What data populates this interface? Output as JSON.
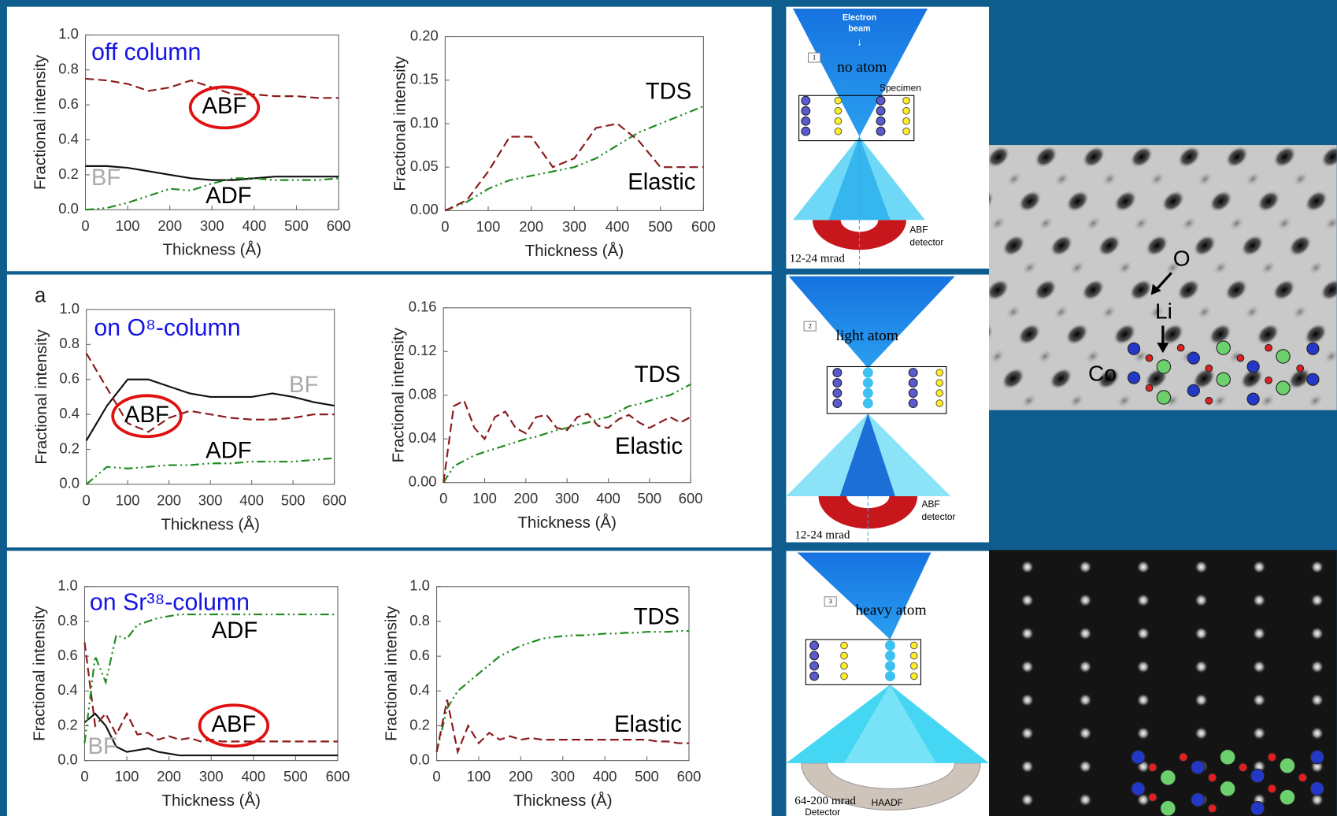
{
  "chart_data": [
    {
      "type": "line",
      "annotation": "off column",
      "xlabel": "Thickness (Å)",
      "ylabel": "Fractional intensity",
      "x": [
        0,
        50,
        100,
        150,
        200,
        250,
        300,
        350,
        400,
        450,
        500,
        550,
        600
      ],
      "xlim": [
        0,
        600
      ],
      "xticks": [
        0,
        100,
        200,
        300,
        400,
        500,
        600
      ],
      "ylim": [
        0,
        1
      ],
      "yticks": [
        {
          "value": 0,
          "label": "0.0"
        },
        0.2,
        0.4,
        0.6,
        0.8,
        {
          "value": 1,
          "label": "1.0"
        }
      ],
      "series": [
        {
          "name": "BF",
          "color": "#111111",
          "label_color": "#aaaaaa",
          "style": "solid",
          "values": [
            0.25,
            0.25,
            0.24,
            0.22,
            0.2,
            0.18,
            0.17,
            0.17,
            0.18,
            0.19,
            0.19,
            0.19,
            0.19
          ]
        },
        {
          "name": "ABF",
          "color": "#8b1a1a",
          "label_color": "#000000",
          "style": "dashed",
          "values": [
            0.75,
            0.74,
            0.72,
            0.68,
            0.7,
            0.74,
            0.7,
            0.66,
            0.66,
            0.65,
            0.65,
            0.64,
            0.64
          ]
        },
        {
          "name": "ADF",
          "color": "#1f8a1f",
          "label_color": "#000000",
          "style": "dashdot",
          "values": [
            0,
            0.01,
            0.04,
            0.08,
            0.12,
            0.11,
            0.15,
            0.18,
            0.18,
            0.17,
            0.17,
            0.17,
            0.18
          ]
        }
      ]
    },
    {
      "type": "line",
      "xlabel": "Thickness (Å)",
      "ylabel": "Fractional intensity",
      "x": [
        0,
        50,
        100,
        150,
        200,
        250,
        300,
        350,
        400,
        450,
        500,
        550,
        600
      ],
      "xlim": [
        0,
        600
      ],
      "xticks": [
        0,
        100,
        200,
        300,
        400,
        500,
        600
      ],
      "ylim": [
        0,
        0.2
      ],
      "yticks": [
        {
          "value": 0,
          "label": "0.00"
        },
        0.05,
        {
          "value": 0.1,
          "label": "0.10"
        },
        0.15,
        {
          "value": 0.2,
          "label": "0.20"
        }
      ],
      "series": [
        {
          "name": "TDS",
          "color": "#1f8a1f",
          "label_color": "#000000",
          "style": "dashdot",
          "values": [
            0,
            0.01,
            0.025,
            0.035,
            0.04,
            0.045,
            0.05,
            0.06,
            0.075,
            0.09,
            0.1,
            0.11,
            0.12
          ]
        },
        {
          "name": "Elastic",
          "color": "#8b1a1a",
          "label_color": "#000000",
          "style": "dashed",
          "values": [
            0,
            0.012,
            0.045,
            0.085,
            0.085,
            0.05,
            0.06,
            0.095,
            0.1,
            0.08,
            0.05,
            0.05,
            0.05
          ]
        }
      ]
    },
    {
      "type": "line",
      "panel_label": "a",
      "annotation": "on O⁸-column",
      "xlabel": "Thickness (Å)",
      "ylabel": "Fractional intensity",
      "x": [
        0,
        50,
        100,
        150,
        200,
        250,
        300,
        350,
        400,
        450,
        500,
        550,
        600
      ],
      "xlim": [
        0,
        600
      ],
      "xticks": [
        0,
        100,
        200,
        300,
        400,
        500,
        600
      ],
      "ylim": [
        0,
        1
      ],
      "yticks": [
        {
          "value": 0,
          "label": "0.0"
        },
        0.2,
        0.4,
        0.6,
        0.8,
        {
          "value": 1,
          "label": "1.0"
        }
      ],
      "series": [
        {
          "name": "BF",
          "color": "#111111",
          "label_color": "#aaaaaa",
          "style": "solid",
          "values": [
            0.25,
            0.45,
            0.6,
            0.6,
            0.56,
            0.52,
            0.5,
            0.5,
            0.5,
            0.52,
            0.5,
            0.47,
            0.45
          ]
        },
        {
          "name": "ABF",
          "color": "#8b1a1a",
          "label_color": "#000000",
          "style": "dashed",
          "values": [
            0.75,
            0.55,
            0.35,
            0.3,
            0.38,
            0.42,
            0.4,
            0.38,
            0.37,
            0.37,
            0.38,
            0.4,
            0.4
          ]
        },
        {
          "name": "ADF",
          "color": "#1f8a1f",
          "label_color": "#000000",
          "style": "dashdot",
          "values": [
            0,
            0.1,
            0.09,
            0.1,
            0.11,
            0.11,
            0.12,
            0.12,
            0.13,
            0.13,
            0.13,
            0.14,
            0.15
          ]
        }
      ]
    },
    {
      "type": "line",
      "xlabel": "Thickness (Å)",
      "ylabel": "Fractional intensity",
      "x": [
        0,
        25,
        50,
        75,
        100,
        125,
        150,
        175,
        200,
        225,
        250,
        275,
        300,
        325,
        350,
        375,
        400,
        425,
        450,
        475,
        500,
        525,
        550,
        575,
        600
      ],
      "xlim": [
        0,
        600
      ],
      "xticks": [
        0,
        100,
        200,
        300,
        400,
        500,
        600
      ],
      "ylim": [
        0,
        0.16
      ],
      "yticks": [
        {
          "value": 0,
          "label": "0.00"
        },
        0.04,
        0.08,
        0.12,
        0.16
      ],
      "series": [
        {
          "name": "TDS",
          "color": "#1f8a1f",
          "label_color": "#000000",
          "style": "dashdot",
          "values": [
            0,
            0.015,
            0.02,
            0.025,
            0.028,
            0.031,
            0.034,
            0.037,
            0.04,
            0.042,
            0.045,
            0.048,
            0.05,
            0.053,
            0.055,
            0.058,
            0.06,
            0.065,
            0.07,
            0.072,
            0.075,
            0.078,
            0.08,
            0.085,
            0.09
          ]
        },
        {
          "name": "Elastic",
          "color": "#8b1a1a",
          "label_color": "#000000",
          "style": "dashed",
          "values": [
            0,
            0.07,
            0.075,
            0.05,
            0.04,
            0.06,
            0.065,
            0.05,
            0.045,
            0.06,
            0.062,
            0.05,
            0.048,
            0.06,
            0.063,
            0.052,
            0.05,
            0.058,
            0.062,
            0.055,
            0.05,
            0.055,
            0.06,
            0.055,
            0.06
          ]
        }
      ]
    },
    {
      "type": "line",
      "annotation": "on Sr³⁸-column",
      "xlabel": "Thickness (Å)",
      "ylabel": "Fractional intensity",
      "x": [
        0,
        25,
        50,
        75,
        100,
        125,
        150,
        175,
        200,
        225,
        250,
        275,
        300,
        325,
        350,
        375,
        400,
        425,
        450,
        475,
        500,
        525,
        550,
        575,
        600
      ],
      "xlim": [
        0,
        600
      ],
      "xticks": [
        0,
        100,
        200,
        300,
        400,
        500,
        600
      ],
      "ylim": [
        0,
        1
      ],
      "yticks": [
        {
          "value": 0,
          "label": "0.0"
        },
        0.2,
        0.4,
        0.6,
        0.8,
        {
          "value": 1,
          "label": "1.0"
        }
      ],
      "series": [
        {
          "name": "BF",
          "color": "#111111",
          "label_color": "#aaaaaa",
          "style": "solid",
          "values": [
            0.22,
            0.27,
            0.2,
            0.08,
            0.05,
            0.06,
            0.07,
            0.05,
            0.04,
            0.03,
            0.03,
            0.03,
            0.03,
            0.03,
            0.03,
            0.03,
            0.03,
            0.03,
            0.03,
            0.03,
            0.03,
            0.03,
            0.03,
            0.03,
            0.03
          ]
        },
        {
          "name": "ABF",
          "color": "#8b1a1a",
          "label_color": "#000000",
          "style": "dashed",
          "values": [
            0.68,
            0.2,
            0.27,
            0.15,
            0.27,
            0.15,
            0.16,
            0.12,
            0.14,
            0.12,
            0.13,
            0.11,
            0.12,
            0.11,
            0.11,
            0.11,
            0.11,
            0.11,
            0.11,
            0.11,
            0.11,
            0.11,
            0.11,
            0.11,
            0.11
          ]
        },
        {
          "name": "ADF",
          "color": "#1f8a1f",
          "label_color": "#000000",
          "style": "dashdot",
          "values": [
            0.1,
            0.6,
            0.45,
            0.72,
            0.7,
            0.78,
            0.8,
            0.82,
            0.83,
            0.84,
            0.84,
            0.84,
            0.84,
            0.84,
            0.84,
            0.84,
            0.84,
            0.84,
            0.84,
            0.84,
            0.84,
            0.84,
            0.84,
            0.84,
            0.84
          ]
        }
      ]
    },
    {
      "type": "line",
      "xlabel": "Thickness (Å)",
      "ylabel": "Fractional intensity",
      "x": [
        0,
        25,
        50,
        75,
        100,
        125,
        150,
        175,
        200,
        225,
        250,
        275,
        300,
        325,
        350,
        375,
        400,
        425,
        450,
        475,
        500,
        525,
        550,
        575,
        600
      ],
      "xlim": [
        0,
        600
      ],
      "xticks": [
        0,
        100,
        200,
        300,
        400,
        500,
        600
      ],
      "ylim": [
        0,
        1
      ],
      "yticks": [
        {
          "value": 0,
          "label": "0.0"
        },
        0.2,
        0.4,
        0.6,
        0.8,
        {
          "value": 1,
          "label": "1.0"
        }
      ],
      "series": [
        {
          "name": "TDS",
          "color": "#1f8a1f",
          "label_color": "#000000",
          "style": "dashdot",
          "values": [
            0.05,
            0.3,
            0.4,
            0.45,
            0.5,
            0.55,
            0.6,
            0.63,
            0.66,
            0.68,
            0.7,
            0.71,
            0.715,
            0.72,
            0.72,
            0.725,
            0.73,
            0.73,
            0.735,
            0.735,
            0.74,
            0.74,
            0.74,
            0.745,
            0.745
          ]
        },
        {
          "name": "Elastic",
          "color": "#8b1a1a",
          "label_color": "#000000",
          "style": "dashed",
          "values": [
            0.05,
            0.35,
            0.05,
            0.2,
            0.1,
            0.16,
            0.12,
            0.14,
            0.12,
            0.13,
            0.12,
            0.12,
            0.12,
            0.12,
            0.12,
            0.12,
            0.12,
            0.12,
            0.12,
            0.12,
            0.12,
            0.11,
            0.11,
            0.1,
            0.1
          ]
        }
      ]
    }
  ],
  "diagrams": [
    {
      "number": "1",
      "title": "no atom",
      "beam": [
        "Electron",
        "beam"
      ],
      "specimen": "Specimen",
      "detector": [
        "ABF",
        "detector"
      ],
      "angle": "12-24 mrad"
    },
    {
      "number": "2",
      "title": "light atom",
      "detector": [
        "ABF",
        "detector"
      ],
      "angle": "12-24 mrad"
    },
    {
      "number": "3",
      "title": "heavy atom",
      "detector": [
        "HAADF"
      ],
      "angle": "64-200 mrad",
      "detector_note": "Detector"
    }
  ],
  "micrograph_labels": [
    "O",
    "Li",
    "Co"
  ]
}
